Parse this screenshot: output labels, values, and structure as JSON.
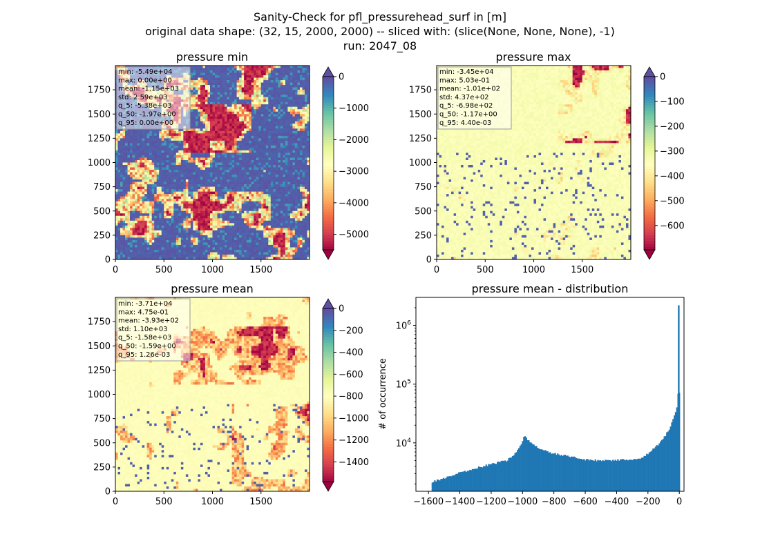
{
  "figure": {
    "title_line1": "Sanity-Check for pfl_pressurehead_surf in [m]",
    "title_line2": "original data shape: (32, 15, 2000, 2000) -- sliced with: (slice(None, None, None), -1)",
    "title_line3": "run: 2047_08"
  },
  "colors": {
    "spectral": [
      "#9e0142",
      "#d53e4f",
      "#f46d43",
      "#fdae61",
      "#fee08b",
      "#ffffbf",
      "#e6f598",
      "#abdda4",
      "#66c2a5",
      "#3288bd",
      "#5e4fa2"
    ],
    "hist_bar": "#1f77b4"
  },
  "chart_data": [
    {
      "type": "heatmap",
      "title": "pressure min",
      "xlim": [
        0,
        2000
      ],
      "ylim": [
        0,
        2000
      ],
      "xticks": [
        "0",
        "500",
        "1000",
        "1500"
      ],
      "yticks": [
        "0",
        "250",
        "500",
        "750",
        "1000",
        "1250",
        "1500",
        "1750"
      ],
      "colorbar": {
        "vmin": -5490,
        "vmax": 0,
        "ticks": [
          "0",
          "−1000",
          "−2000",
          "−3000",
          "−4000",
          "−5000"
        ],
        "extend": "both"
      },
      "stats": [
        "min: -5.49e+04",
        "max: 0.00e+00",
        "mean: -1.15e+03",
        "std: 2.59e+03",
        "q_5: -5.38e+03",
        "q_50: -1.97e+00",
        "q_95: 0.00e+00"
      ]
    },
    {
      "type": "heatmap",
      "title": "pressure max",
      "xlim": [
        0,
        2000
      ],
      "ylim": [
        0,
        2000
      ],
      "xticks": [
        "0",
        "500",
        "1000",
        "1500"
      ],
      "yticks": [
        "0",
        "250",
        "500",
        "750",
        "1000",
        "1250",
        "1500",
        "1750"
      ],
      "colorbar": {
        "vmin": -698,
        "vmax": 0,
        "ticks": [
          "0",
          "−100",
          "−200",
          "−300",
          "−400",
          "−500",
          "−600"
        ],
        "extend": "both"
      },
      "stats": [
        "min: -3.45e+04",
        "max: 5.03e-01",
        "mean: -1.01e+02",
        "std: 4.37e+02",
        "q_5: -6.98e+02",
        "q_50: -1.17e+00",
        "q_95: 4.40e-03"
      ]
    },
    {
      "type": "heatmap",
      "title": "pressure mean",
      "xlim": [
        0,
        2000
      ],
      "ylim": [
        0,
        2000
      ],
      "xticks": [
        "0",
        "500",
        "1000",
        "1500"
      ],
      "yticks": [
        "0",
        "250",
        "500",
        "750",
        "1000",
        "1250",
        "1500",
        "1750"
      ],
      "colorbar": {
        "vmin": -1580,
        "vmax": 0,
        "ticks": [
          "0",
          "−200",
          "−400",
          "−600",
          "−800",
          "−1000",
          "−1200",
          "−1400"
        ],
        "extend": "both"
      },
      "stats": [
        "min: -3.71e+04",
        "max: 4.75e-01",
        "mean: -3.93e+02",
        "std: 1.10e+03",
        "q_5: -1.58e+03",
        "q_50: -1.59e+00",
        "q_95: 1.26e-03"
      ]
    },
    {
      "type": "bar",
      "title": "pressure mean - distribution",
      "ylabel": "# of occurrence",
      "yscale": "log",
      "xlim": [
        -1680,
        30
      ],
      "xticks": [
        -1600,
        -1400,
        -1200,
        -1000,
        -800,
        -600,
        -400,
        -200,
        0
      ],
      "xtick_labels": [
        "−1600",
        "−1400",
        "−1200",
        "−1000",
        "−800",
        "−600",
        "−400",
        "−200",
        "0"
      ],
      "ylim": [
        1500,
        3000000
      ],
      "ytick_labels": [
        {
          "base": "10",
          "exp": "4",
          "value": 10000
        },
        {
          "base": "10",
          "exp": "5",
          "value": 100000
        },
        {
          "base": "10",
          "exp": "6",
          "value": 1000000
        }
      ],
      "curve": {
        "x": [
          -1580,
          -1500,
          -1400,
          -1300,
          -1200,
          -1100,
          -1050,
          -1010,
          -990,
          -970,
          -950,
          -900,
          -850,
          -800,
          -700,
          -600,
          -500,
          -400,
          -300,
          -250,
          -200,
          -150,
          -100,
          -60,
          -40,
          -20,
          -12,
          -8,
          -4
        ],
        "y": [
          2150,
          2500,
          3100,
          3700,
          4350,
          5000,
          6500,
          9500,
          13000,
          11500,
          10000,
          8200,
          7200,
          6600,
          5900,
          5200,
          5000,
          5100,
          5200,
          5500,
          6500,
          8500,
          12000,
          18000,
          25000,
          35000,
          50000,
          70000,
          70000
        ]
      },
      "spike": {
        "x": 0,
        "y": 2200000
      }
    }
  ]
}
